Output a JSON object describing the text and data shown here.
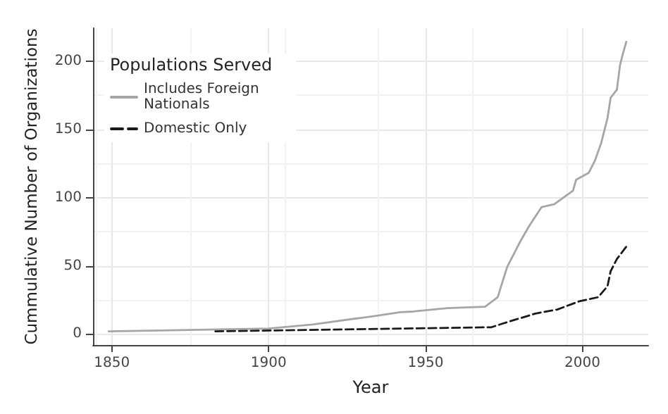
{
  "chart_data": {
    "type": "line",
    "xlabel": "Year",
    "ylabel": "Cummulative Number of Organizations",
    "legend_title": "Populations Served",
    "series": [
      {
        "name": "Includes Foreign Nationals",
        "color": "#a6a6a6",
        "line_style": "solid",
        "x": [
          1849,
          1900,
          1914,
          1933,
          1942,
          1946,
          1957,
          1969,
          1973,
          1976,
          1980,
          1983,
          1987,
          1991,
          1997,
          1998,
          2002,
          2004,
          2006,
          2008,
          2009,
          2011,
          2012,
          2013,
          2014
        ],
        "values": [
          2,
          4,
          7,
          13,
          16,
          16.5,
          19,
          20,
          27,
          49,
          67,
          79,
          93,
          95,
          105,
          113,
          118,
          127,
          140,
          158,
          173,
          179,
          197,
          206,
          214
        ]
      },
      {
        "name": "Domestic Only",
        "color": "#1a1a1a",
        "line_style": "dashed",
        "x": [
          1883,
          1971,
          1975,
          1985,
          1992,
          1999,
          2005,
          2008,
          2009,
          2011,
          2014
        ],
        "values": [
          2,
          5,
          8,
          15,
          18,
          24,
          27,
          35,
          46,
          55,
          64
        ]
      }
    ],
    "xlim": [
      1844,
      2021
    ],
    "xticks": [
      1850,
      1900,
      1950,
      2000
    ],
    "ylim": [
      -8,
      224
    ],
    "yticks": [
      0,
      50,
      100,
      150,
      200
    ],
    "grid": true,
    "legend": "top left",
    "marker": "none"
  }
}
